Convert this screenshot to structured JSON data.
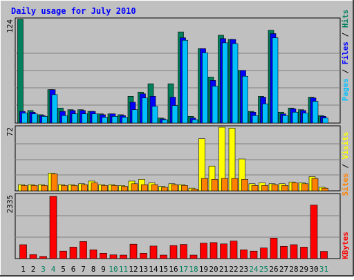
{
  "chart_data": [
    {
      "type": "bar",
      "title": "Daily usage for July 2010",
      "panel": "hits-files-pages",
      "ymax_label": "124",
      "ylim": [
        0,
        124
      ],
      "legend": [
        "Pages",
        "Files",
        "Hits"
      ],
      "legend_separators": [
        "/",
        "/"
      ],
      "categories": [
        "1",
        "2",
        "3",
        "4",
        "5",
        "6",
        "7",
        "8",
        "9",
        "10",
        "11",
        "12",
        "13",
        "14",
        "15",
        "16",
        "17",
        "18",
        "19",
        "20",
        "21",
        "22",
        "23",
        "24",
        "25",
        "26",
        "27",
        "28",
        "29",
        "30",
        "31"
      ],
      "weekend_days": [
        "3",
        "4",
        "10",
        "11",
        "17",
        "18",
        "24",
        "25",
        "31"
      ],
      "series": [
        {
          "name": "Hits",
          "values": [
            124,
            15,
            10,
            40,
            18,
            16,
            16,
            14,
            11,
            11,
            10,
            32,
            37,
            47,
            6,
            47,
            109,
            8,
            89,
            55,
            105,
            100,
            63,
            14,
            32,
            111,
            13,
            18,
            16,
            31,
            9
          ]
        },
        {
          "name": "Files",
          "values": [
            14,
            13,
            9,
            40,
            14,
            15,
            15,
            14,
            10,
            11,
            9,
            25,
            35,
            32,
            5,
            31,
            102,
            6,
            89,
            51,
            101,
            100,
            63,
            13,
            31,
            107,
            11,
            17,
            15,
            30,
            8
          ]
        },
        {
          "name": "Pages",
          "values": [
            12,
            11,
            8,
            34,
            9,
            11,
            11,
            11,
            7,
            8,
            7,
            16,
            30,
            20,
            4,
            21,
            99,
            4,
            84,
            44,
            96,
            95,
            56,
            9,
            23,
            102,
            9,
            13,
            12,
            26,
            6
          ]
        }
      ],
      "colors": {
        "Hits": "#00805c",
        "Files": "#0000ff",
        "Pages": "#00c0ff"
      }
    },
    {
      "type": "bar",
      "panel": "visits-sites",
      "ymax_label": "72",
      "ylim": [
        0,
        72
      ],
      "legend": [
        "Sites",
        "Visits"
      ],
      "legend_separators": [
        "/"
      ],
      "series": [
        {
          "name": "Visits",
          "values": [
            7,
            7,
            7,
            20,
            7,
            7,
            8,
            11,
            7,
            7,
            6,
            11,
            13,
            9,
            5,
            8,
            7,
            3,
            59,
            28,
            72,
            71,
            36,
            8,
            9,
            8,
            8,
            10,
            9,
            16,
            4
          ]
        },
        {
          "name": "Sites",
          "values": [
            6,
            6,
            6,
            19,
            6,
            6,
            7,
            9,
            6,
            6,
            5,
            8,
            7,
            7,
            4,
            7,
            6,
            2,
            14,
            13,
            14,
            14,
            13,
            6,
            6,
            7,
            6,
            9,
            8,
            14,
            3
          ]
        }
      ],
      "colors": {
        "Visits": "#ffff00",
        "Sites": "#ff8000"
      }
    },
    {
      "type": "bar",
      "panel": "kbytes",
      "ymax_label": "2335",
      "ylim": [
        0,
        2335
      ],
      "legend": [
        "KBytes"
      ],
      "series": [
        {
          "name": "KBytes",
          "values": [
            520,
            150,
            80,
            2335,
            280,
            430,
            640,
            330,
            200,
            140,
            130,
            540,
            200,
            470,
            130,
            490,
            530,
            130,
            580,
            600,
            550,
            660,
            330,
            280,
            400,
            770,
            460,
            520,
            430,
            2010,
            270
          ]
        }
      ],
      "colors": {
        "KBytes": "#ff0000"
      }
    }
  ],
  "colors": {
    "background": "#c0c0c0",
    "border": "#000000",
    "title": "#0000ff",
    "weekday_label": "#000000",
    "weekend_label": "#00805c",
    "grid": "#808080"
  }
}
